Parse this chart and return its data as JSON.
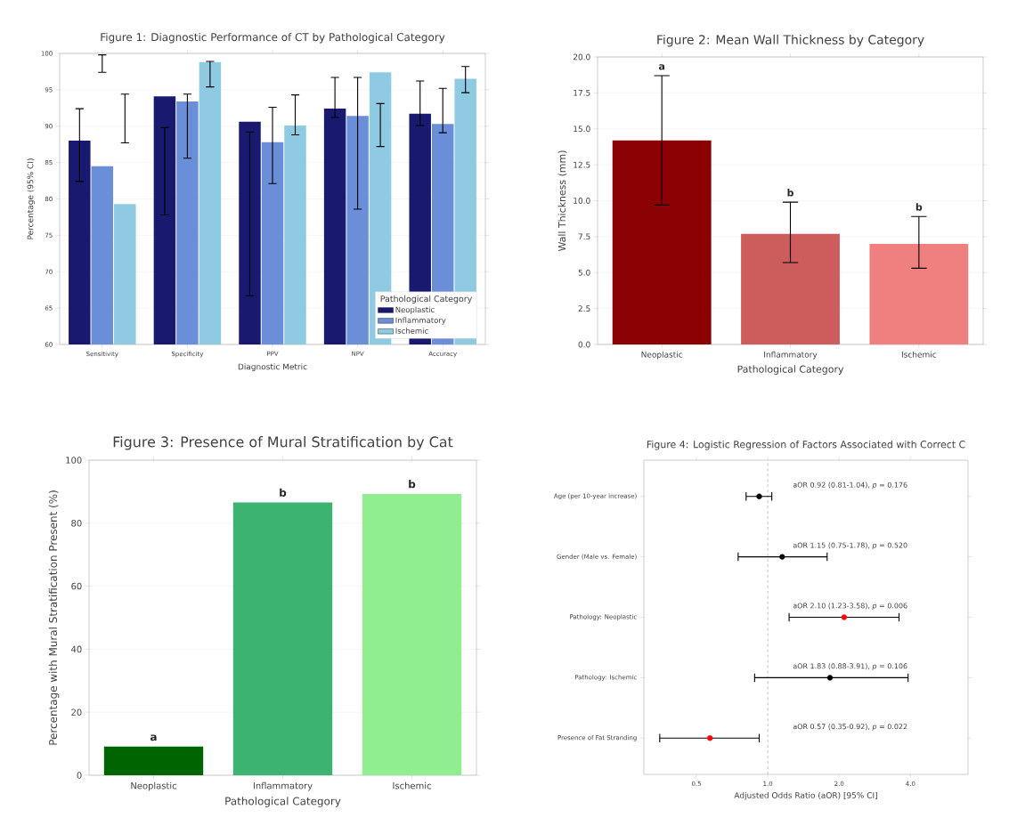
{
  "chart_data": [
    {
      "type": "bar",
      "title": "Figure 1: Diagnostic Performance of CT by Pathological Category",
      "xlabel": "Diagnostic Metric",
      "ylabel": "Percentage (95% CI)",
      "legend_title": "Pathological Category",
      "categories": [
        "Sensitivity",
        "Specificity",
        "PPV",
        "NPV",
        "Accuracy"
      ],
      "series": [
        {
          "name": "Neoplastic",
          "color": "#191970",
          "values": [
            88.0,
            94.1,
            90.6,
            92.4,
            91.7
          ],
          "errors": [
            [
              82.4,
              92.4
            ],
            [
              77.8,
              89.8
            ],
            [
              66.7,
              89.2
            ],
            [
              91.2,
              96.7
            ],
            [
              90.1,
              96.2
            ]
          ]
        },
        {
          "name": "Inflammatory",
          "color": "#6a8fd8",
          "values": [
            84.5,
            93.4,
            87.8,
            91.4,
            90.3
          ],
          "errors": [
            [
              97.4,
              99.8
            ],
            [
              85.6,
              94.4
            ],
            [
              82.1,
              92.6
            ],
            [
              78.6,
              96.7
            ],
            [
              89.1,
              95.2
            ]
          ]
        },
        {
          "name": "Ischemic",
          "color": "#8ecae2",
          "values": [
            79.3,
            98.8,
            90.1,
            97.4,
            96.5
          ],
          "errors": [
            [
              87.7,
              94.4
            ],
            [
              95.4,
              98.9
            ],
            [
              88.8,
              94.3
            ],
            [
              87.2,
              93.1
            ],
            [
              94.6,
              98.2
            ]
          ]
        }
      ],
      "ylim": [
        60,
        100
      ],
      "yticks": [
        60,
        65,
        70,
        75,
        80,
        85,
        90,
        95,
        100
      ],
      "grid": "y",
      "legend": "bottom right"
    },
    {
      "type": "bar",
      "title": "Figure 2: Mean Wall Thickness by Category",
      "xlabel": "Pathological Category",
      "ylabel": "Wall Thickness (mm)",
      "categories": [
        "Neoplastic",
        "Inflammatory",
        "Ischemic"
      ],
      "values": [
        14.2,
        7.7,
        7.0
      ],
      "colors": [
        "#8b0000",
        "#cd5c5c",
        "#f08080"
      ],
      "errors": [
        [
          9.7,
          18.7
        ],
        [
          5.7,
          9.9
        ],
        [
          5.3,
          8.9
        ]
      ],
      "annotations": [
        "a",
        "b",
        "b"
      ],
      "ylim": [
        0,
        20
      ],
      "yticks": [
        {
          "value": 0,
          "label": "0.0"
        },
        {
          "value": 2.5,
          "label": "2.5"
        },
        {
          "value": 5,
          "label": "5.0"
        },
        {
          "value": 7.5,
          "label": "7.5"
        },
        {
          "value": 10,
          "label": "10.0"
        },
        {
          "value": 12.5,
          "label": "12.5"
        },
        {
          "value": 15,
          "label": "15.0"
        },
        {
          "value": 17.5,
          "label": "17.5"
        },
        {
          "value": 20,
          "label": "20.0"
        }
      ],
      "grid": "y"
    },
    {
      "type": "bar",
      "title": "Figure 3: Presence of Mural Stratification by Cat",
      "xlabel": "Pathological Category",
      "ylabel": "Percentage with Mural Stratification Present (%)",
      "categories": [
        "Neoplastic",
        "Inflammatory",
        "Ischemic"
      ],
      "values": [
        9.1,
        86.6,
        89.3
      ],
      "colors": [
        "#006400",
        "#3cb371",
        "#90ee90"
      ],
      "annotations": [
        "a",
        "b",
        "b"
      ],
      "ylim": [
        0,
        100
      ],
      "yticks": [
        0,
        20,
        40,
        60,
        80,
        100
      ],
      "grid": "y"
    },
    {
      "type": "scatter",
      "orientation": "horizontal",
      "title": "Figure 4: Logistic Regression of Factors Associated with Correct C",
      "xlabel": "Adjusted Odds Ratio (aOR) [95% CI]",
      "categories": [
        "Age (per 10-year increase)",
        "Gender (Male vs. Female)",
        "Pathology: Neoplastic",
        "Pathology: Ischemic",
        "Presence of Fat Stranding"
      ],
      "values": [
        0.92,
        1.15,
        2.1,
        1.83,
        0.57
      ],
      "colors": [
        "#000000",
        "#000000",
        "#ff0000",
        "#000000",
        "#ff0000"
      ],
      "errors": [
        [
          0.81,
          1.04
        ],
        [
          0.75,
          1.78
        ],
        [
          1.23,
          3.58
        ],
        [
          0.88,
          3.91
        ],
        [
          0.35,
          0.92
        ]
      ],
      "annotations": [
        "aOR 0.92 (0.81-1.04), *p* = 0.176",
        "aOR 1.15 (0.75-1.78), *p* = 0.520",
        "aOR 2.10 (1.23-3.58), *p* = 0.006",
        "aOR 1.83 (0.88-3.91), *p* = 0.106",
        "aOR 0.57 (0.35-0.92), *p* = 0.022"
      ],
      "log": "x",
      "xlim": [
        0.3,
        7
      ],
      "xticks": [
        {
          "value": 0.5,
          "label": "0.5"
        },
        {
          "value": 1,
          "label": "1.0"
        },
        {
          "value": 2,
          "label": "2.0"
        },
        {
          "value": 4,
          "label": "4.0"
        }
      ],
      "ref_lines": [
        {
          "axis": "x",
          "value": 1,
          "color": "#b0b0b0",
          "line_style": "dashed"
        }
      ],
      "marker": "circle"
    }
  ]
}
